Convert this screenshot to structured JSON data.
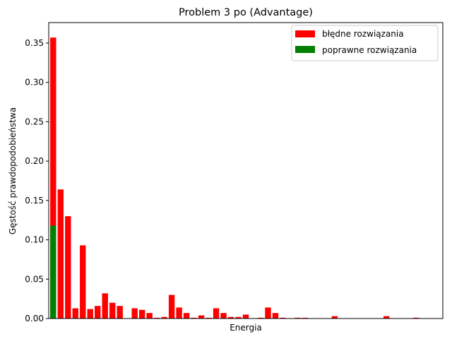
{
  "chart_data": {
    "type": "bar",
    "title": "Problem 3 po (Advantage)",
    "xlabel": "Energia",
    "ylabel": "Gęstość prawdopodobieństwa",
    "ylim": [
      0,
      0.376
    ],
    "yticks": [
      "0.00",
      "0.05",
      "0.10",
      "0.15",
      "0.20",
      "0.25",
      "0.30",
      "0.35"
    ],
    "ytick_values": [
      0,
      0.05,
      0.1,
      0.15,
      0.2,
      0.25,
      0.3,
      0.35
    ],
    "grid": false,
    "legend_position": "top-right",
    "x_range": [
      -0.6,
      52.6
    ],
    "series": [
      {
        "name": "błędne rozwiązania",
        "color": "#ff0000",
        "points": [
          {
            "x": 0,
            "y": 0.357
          },
          {
            "x": 1,
            "y": 0.164
          },
          {
            "x": 2,
            "y": 0.13
          },
          {
            "x": 3,
            "y": 0.013
          },
          {
            "x": 4,
            "y": 0.093
          },
          {
            "x": 5,
            "y": 0.012
          },
          {
            "x": 6,
            "y": 0.016
          },
          {
            "x": 7,
            "y": 0.032
          },
          {
            "x": 8,
            "y": 0.02
          },
          {
            "x": 9,
            "y": 0.016
          },
          {
            "x": 11,
            "y": 0.013
          },
          {
            "x": 12,
            "y": 0.011
          },
          {
            "x": 13,
            "y": 0.007
          },
          {
            "x": 14,
            "y": 0.001
          },
          {
            "x": 15,
            "y": 0.002
          },
          {
            "x": 16,
            "y": 0.03
          },
          {
            "x": 17,
            "y": 0.014
          },
          {
            "x": 18,
            "y": 0.007
          },
          {
            "x": 19,
            "y": 0.001
          },
          {
            "x": 20,
            "y": 0.004
          },
          {
            "x": 21,
            "y": 0.001
          },
          {
            "x": 22,
            "y": 0.013
          },
          {
            "x": 23,
            "y": 0.007
          },
          {
            "x": 24,
            "y": 0.002
          },
          {
            "x": 25,
            "y": 0.002
          },
          {
            "x": 26,
            "y": 0.005
          },
          {
            "x": 28,
            "y": 0.001
          },
          {
            "x": 29,
            "y": 0.014
          },
          {
            "x": 30,
            "y": 0.007
          },
          {
            "x": 31,
            "y": 0.001
          },
          {
            "x": 33,
            "y": 0.001
          },
          {
            "x": 34,
            "y": 0.001
          },
          {
            "x": 38,
            "y": 0.003
          },
          {
            "x": 45,
            "y": 0.003
          },
          {
            "x": 49,
            "y": 0.001
          }
        ]
      },
      {
        "name": "poprawne rozwiązania",
        "color": "#008000",
        "points": [
          {
            "x": 0,
            "y": 0.118
          }
        ]
      }
    ]
  }
}
